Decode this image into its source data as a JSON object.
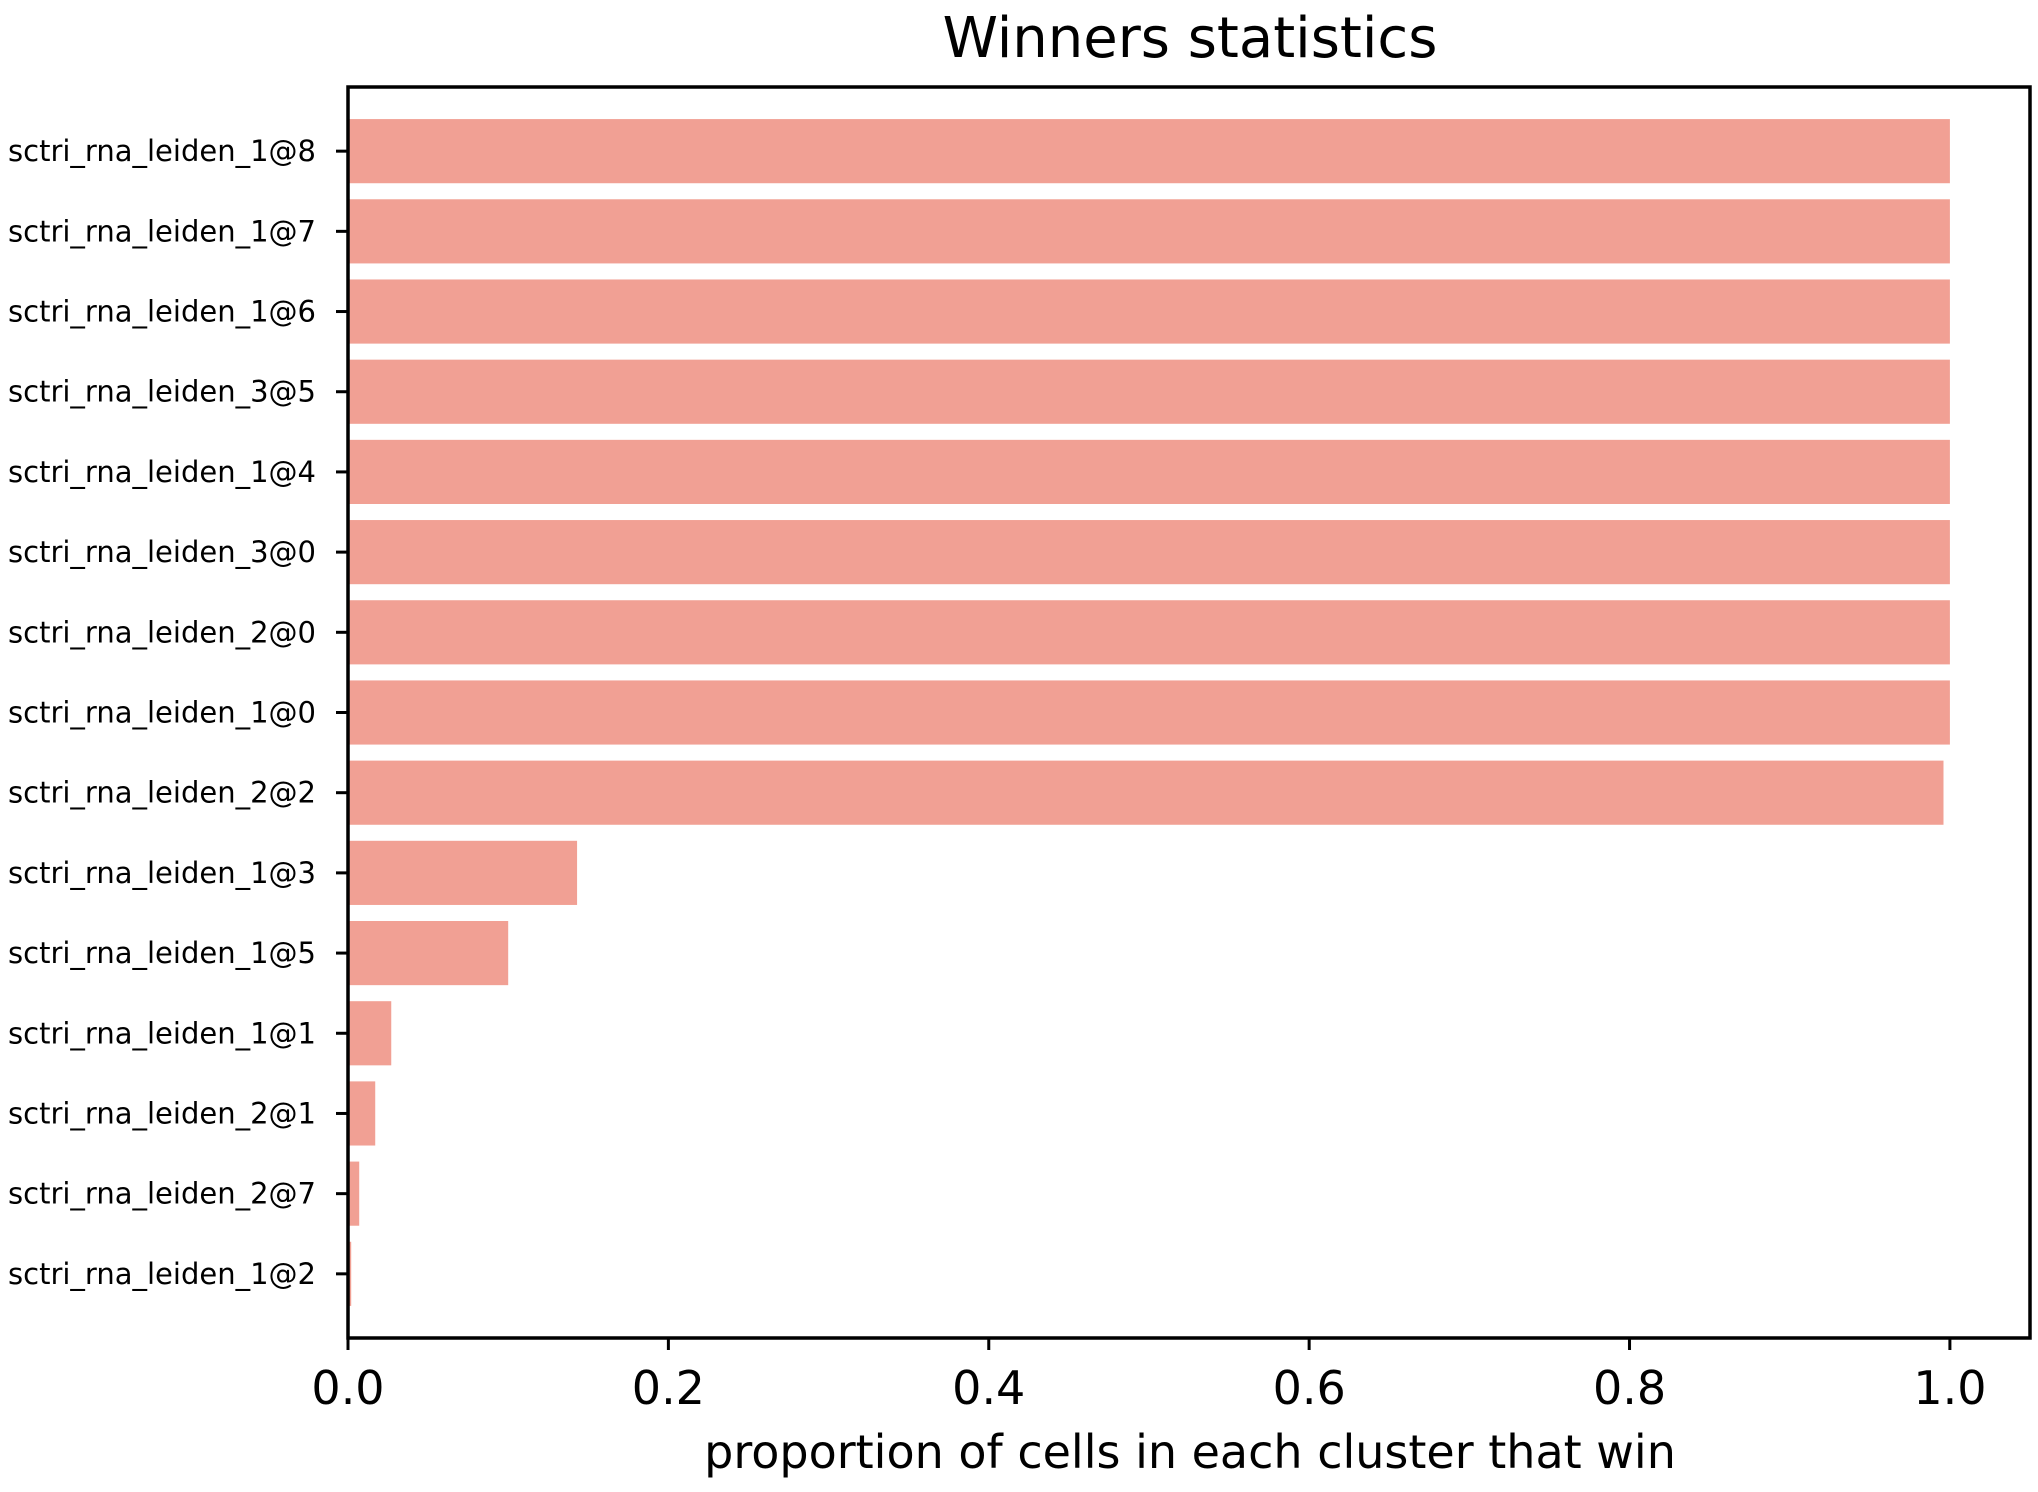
{
  "chart_data": {
    "type": "bar",
    "orientation": "horizontal",
    "title": "Winners statistics",
    "xlabel": "proportion of cells in each cluster that win",
    "ylabel": "",
    "xlim": [
      0,
      1.05
    ],
    "xticks": [
      0.0,
      0.2,
      0.4,
      0.6,
      0.8,
      1.0
    ],
    "xtick_labels": [
      "0.0",
      "0.2",
      "0.4",
      "0.6",
      "0.8",
      "1.0"
    ],
    "grid": false,
    "legend": null,
    "bar_color": "#f1a094",
    "categories": [
      "sctri_rna_leiden_1@8",
      "sctri_rna_leiden_1@7",
      "sctri_rna_leiden_1@6",
      "sctri_rna_leiden_3@5",
      "sctri_rna_leiden_1@4",
      "sctri_rna_leiden_3@0",
      "sctri_rna_leiden_2@0",
      "sctri_rna_leiden_1@0",
      "sctri_rna_leiden_2@2",
      "sctri_rna_leiden_1@3",
      "sctri_rna_leiden_1@5",
      "sctri_rna_leiden_1@1",
      "sctri_rna_leiden_2@1",
      "sctri_rna_leiden_2@7",
      "sctri_rna_leiden_1@2"
    ],
    "values": [
      1.0,
      1.0,
      1.0,
      1.0,
      1.0,
      1.0,
      1.0,
      1.0,
      0.996,
      0.143,
      0.1,
      0.027,
      0.017,
      0.007,
      0.002
    ]
  }
}
